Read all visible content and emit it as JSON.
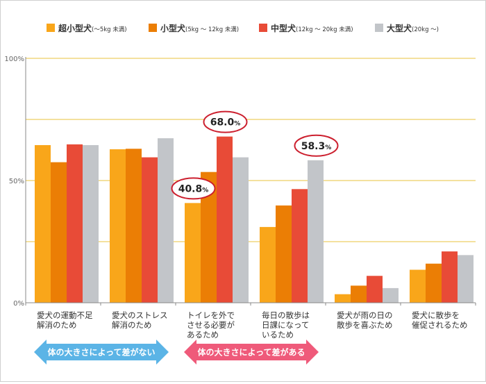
{
  "chart_data": {
    "type": "bar",
    "categories": [
      [
        "愛犬の運動不足",
        "解消のため"
      ],
      [
        "愛犬のストレス",
        "解消のため"
      ],
      [
        "トイレを外で",
        "させる必要が",
        "あるため"
      ],
      [
        "毎日の散歩は",
        "日課になって",
        "いるため"
      ],
      [
        "愛犬が雨の日の",
        "散歩を喜ぶため"
      ],
      [
        "愛犬に散歩を",
        "催促されるため"
      ]
    ],
    "series": [
      {
        "name": "超小型犬",
        "range": "(～5kg 未満)",
        "color": "#f9a61a",
        "values": [
          64.5,
          62.8,
          40.8,
          31.0,
          3.5,
          13.5
        ]
      },
      {
        "name": "小型犬",
        "range": "(5kg ～ 12kg 未満)",
        "color": "#eb7e05",
        "values": [
          57.5,
          63.0,
          53.5,
          39.8,
          7.0,
          16.0
        ]
      },
      {
        "name": "中型犬",
        "range": "(12kg ～ 20kg 未満)",
        "color": "#e84b37",
        "values": [
          64.8,
          59.5,
          68.0,
          46.5,
          11.0,
          21.0
        ]
      },
      {
        "name": "大型犬",
        "range": "(20kg ～)",
        "color": "#c2c5c9",
        "values": [
          64.5,
          67.3,
          59.5,
          58.3,
          6.0,
          19.5
        ]
      }
    ],
    "yticks": [
      "0%",
      "50%",
      "100%"
    ],
    "ylim": [
      0,
      100
    ],
    "gridlines": [
      25,
      50,
      75,
      100
    ],
    "legend_position": "top",
    "callouts": [
      {
        "category": 2,
        "series": 0,
        "label": "40.8",
        "unit": "%"
      },
      {
        "category": 2,
        "series": 2,
        "label": "68.0",
        "unit": "%"
      },
      {
        "category": 3,
        "series": 3,
        "label": "58.3",
        "unit": "%"
      }
    ],
    "annotations": [
      {
        "text": "体の大きさによって差がない",
        "color": "#5bb4e6",
        "spans": [
          0,
          1
        ]
      },
      {
        "text": "体の大きさによって差がある",
        "color": "#ef5a7a",
        "spans": [
          2,
          3
        ]
      }
    ]
  }
}
